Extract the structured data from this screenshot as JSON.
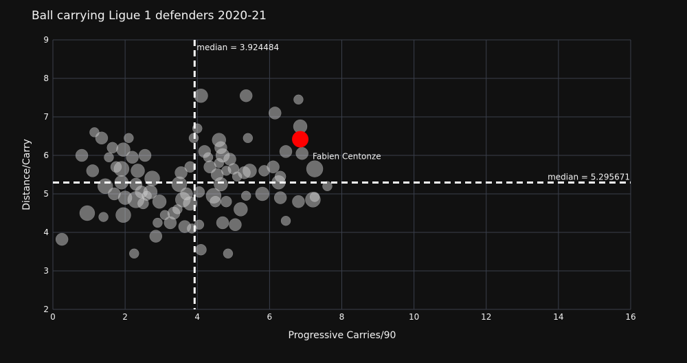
{
  "chart_data": {
    "type": "scatter",
    "title": "Ball carrying Ligue 1 defenders 2020-21",
    "xlabel": "Progressive Carries/90",
    "ylabel": "Distance/Carry",
    "xlim": [
      0,
      16
    ],
    "ylim": [
      2,
      9
    ],
    "xticks": [
      "0",
      "2",
      "4",
      "6",
      "8",
      "10",
      "12",
      "14",
      "16"
    ],
    "yticks": [
      "2",
      "3",
      "4",
      "5",
      "6",
      "7",
      "8",
      "9"
    ],
    "grid": true,
    "median_x": 3.924484,
    "median_y": 5.295671,
    "median_x_label": "median = 3.924484",
    "median_y_label": "median = 5.295671",
    "highlight": {
      "label": "Fabien Centonze",
      "x": 6.85,
      "y": 6.42,
      "color": "#ff0000"
    },
    "points": [
      [
        0.25,
        3.82,
        18
      ],
      [
        0.95,
        4.5,
        22
      ],
      [
        0.8,
        6.0,
        18
      ],
      [
        1.1,
        5.6,
        18
      ],
      [
        1.15,
        6.6,
        14
      ],
      [
        1.35,
        6.45,
        18
      ],
      [
        1.45,
        5.2,
        22
      ],
      [
        1.4,
        4.4,
        14
      ],
      [
        1.55,
        5.95,
        14
      ],
      [
        1.65,
        6.2,
        16
      ],
      [
        1.7,
        5.0,
        18
      ],
      [
        1.75,
        5.7,
        16
      ],
      [
        1.9,
        5.65,
        22
      ],
      [
        1.9,
        5.3,
        20
      ],
      [
        1.95,
        6.15,
        20
      ],
      [
        1.95,
        4.45,
        22
      ],
      [
        2.0,
        4.9,
        20
      ],
      [
        2.1,
        6.45,
        14
      ],
      [
        2.2,
        5.95,
        18
      ],
      [
        2.25,
        3.45,
        14
      ],
      [
        2.3,
        4.85,
        24
      ],
      [
        2.3,
        5.25,
        18
      ],
      [
        2.35,
        5.6,
        20
      ],
      [
        2.45,
        5.05,
        18
      ],
      [
        2.5,
        4.75,
        16
      ],
      [
        2.55,
        6.0,
        18
      ],
      [
        2.6,
        4.95,
        14
      ],
      [
        2.7,
        5.05,
        20
      ],
      [
        2.75,
        5.4,
        22
      ],
      [
        2.85,
        3.9,
        18
      ],
      [
        2.9,
        4.25,
        14
      ],
      [
        2.95,
        4.8,
        20
      ],
      [
        3.1,
        4.45,
        14
      ],
      [
        3.25,
        4.25,
        18
      ],
      [
        3.35,
        4.5,
        18
      ],
      [
        3.45,
        4.6,
        14
      ],
      [
        3.5,
        5.25,
        22
      ],
      [
        3.55,
        5.55,
        18
      ],
      [
        3.6,
        4.85,
        22
      ],
      [
        3.7,
        5.0,
        18
      ],
      [
        3.65,
        4.15,
        18
      ],
      [
        3.8,
        5.7,
        16
      ],
      [
        3.8,
        4.75,
        20
      ],
      [
        3.85,
        4.1,
        14
      ],
      [
        3.9,
        6.45,
        14
      ],
      [
        4.0,
        6.7,
        14
      ],
      [
        4.05,
        5.05,
        16
      ],
      [
        4.05,
        4.2,
        14
      ],
      [
        4.1,
        3.55,
        16
      ],
      [
        4.1,
        7.55,
        20
      ],
      [
        4.2,
        6.1,
        18
      ],
      [
        4.3,
        5.95,
        14
      ],
      [
        4.35,
        5.7,
        18
      ],
      [
        4.45,
        4.95,
        22
      ],
      [
        4.5,
        4.8,
        16
      ],
      [
        4.55,
        5.5,
        18
      ],
      [
        4.6,
        5.8,
        14
      ],
      [
        4.6,
        6.4,
        20
      ],
      [
        4.65,
        6.2,
        18
      ],
      [
        4.65,
        5.25,
        20
      ],
      [
        4.7,
        6.0,
        20
      ],
      [
        4.7,
        4.25,
        18
      ],
      [
        4.8,
        4.8,
        16
      ],
      [
        4.8,
        5.6,
        14
      ],
      [
        4.85,
        3.45,
        14
      ],
      [
        4.9,
        5.9,
        18
      ],
      [
        5.0,
        5.65,
        16
      ],
      [
        5.05,
        4.2,
        18
      ],
      [
        5.1,
        5.45,
        14
      ],
      [
        5.2,
        4.6,
        20
      ],
      [
        5.3,
        5.55,
        18
      ],
      [
        5.35,
        4.95,
        14
      ],
      [
        5.35,
        7.55,
        18
      ],
      [
        5.45,
        5.6,
        20
      ],
      [
        5.4,
        6.45,
        14
      ],
      [
        5.8,
        5.0,
        20
      ],
      [
        5.85,
        5.6,
        16
      ],
      [
        6.1,
        5.7,
        18
      ],
      [
        6.15,
        7.1,
        18
      ],
      [
        6.25,
        5.3,
        20
      ],
      [
        6.3,
        5.45,
        16
      ],
      [
        6.3,
        4.9,
        18
      ],
      [
        6.45,
        6.1,
        18
      ],
      [
        6.45,
        4.3,
        14
      ],
      [
        6.8,
        7.45,
        14
      ],
      [
        6.8,
        4.8,
        18
      ],
      [
        6.85,
        6.75,
        20
      ],
      [
        6.9,
        6.05,
        18
      ],
      [
        7.2,
        4.85,
        22
      ],
      [
        7.25,
        4.92,
        14
      ],
      [
        7.25,
        5.65,
        24
      ],
      [
        7.6,
        5.2,
        14
      ]
    ]
  }
}
